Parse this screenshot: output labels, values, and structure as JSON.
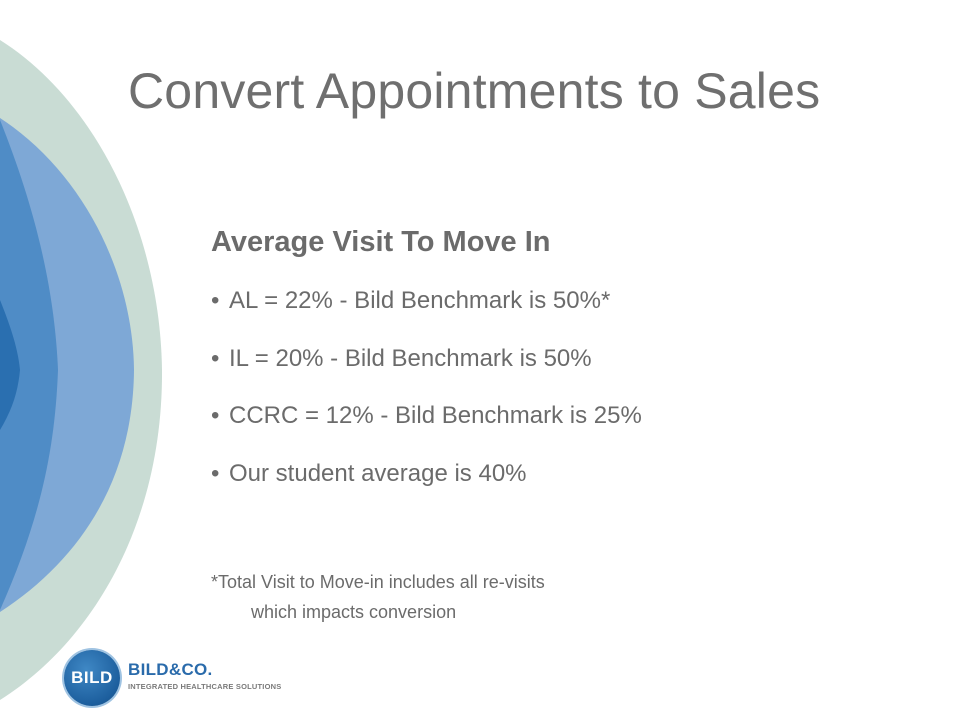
{
  "slide": {
    "title": "Convert Appointments to Sales",
    "subtitle": "Average Visit To Move In",
    "bullet_marker": "•",
    "bullets": [
      "AL = 22% - Bild Benchmark is 50%*",
      "IL = 20% - Bild Benchmark is 50%",
      "CCRC = 12% - Bild Benchmark is 25%",
      "Our student average is 40%"
    ],
    "footnote": {
      "line1": "*Total Visit to Move-in includes all re-visits",
      "line2": "which impacts conversion"
    }
  },
  "logo": {
    "badge_text": "BILD",
    "name": "BILD&CO.",
    "tagline": "INTEGRATED HEALTHCARE SOLUTIONS"
  },
  "colors": {
    "outer_arc": "#c9dcd4",
    "light_blue": "#7ea8d6",
    "mid_blue": "#4f8cc6",
    "dark_blue": "#2a6fb0",
    "text_gray": "#6b6b6b"
  }
}
